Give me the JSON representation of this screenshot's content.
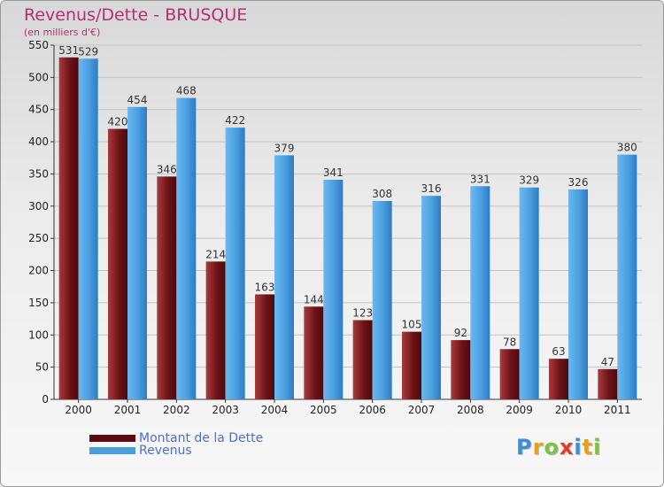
{
  "chart_data": {
    "type": "bar",
    "title": "Revenus/Dette - BRUSQUE",
    "subtitle": "(en milliers d'€)",
    "categories": [
      "2000",
      "2001",
      "2002",
      "2003",
      "2004",
      "2005",
      "2006",
      "2007",
      "2008",
      "2009",
      "2010",
      "2011"
    ],
    "series": [
      {
        "name": "Montant de la Dette",
        "color": "#7a1a1e",
        "values": [
          531,
          420,
          346,
          214,
          163,
          144,
          123,
          105,
          92,
          78,
          63,
          47
        ]
      },
      {
        "name": "Revenus",
        "color": "#4a9ee0",
        "values": [
          529,
          454,
          468,
          422,
          379,
          341,
          308,
          316,
          331,
          329,
          326,
          380
        ]
      }
    ],
    "ylim": [
      0,
      550
    ],
    "yticks": [
      0,
      50,
      100,
      150,
      200,
      250,
      300,
      350,
      400,
      450,
      500,
      550
    ],
    "grid": true,
    "legend": "bottom-left"
  },
  "logo": {
    "letters": [
      "P",
      "r",
      "o",
      "x",
      "i",
      "t",
      "i"
    ],
    "colors": [
      "#3a8fd8",
      "#e8a21a",
      "#7cc242",
      "#e23a2e",
      "#3a8fd8",
      "#e8a21a",
      "#7cc242"
    ]
  }
}
